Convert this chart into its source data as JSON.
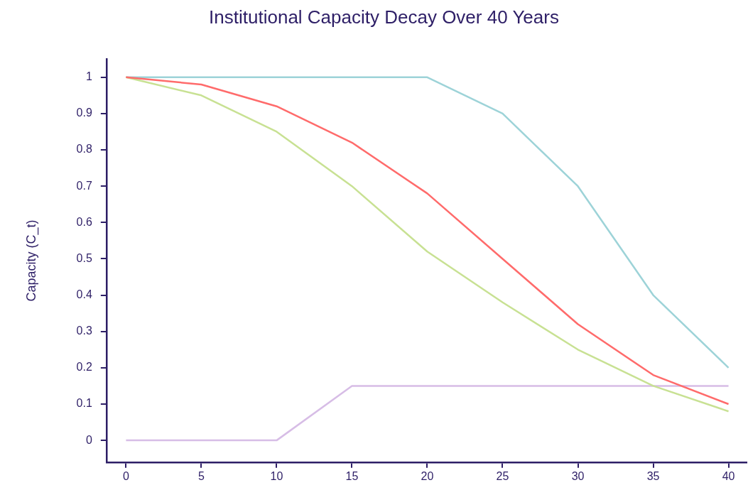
{
  "chart_data": {
    "type": "line",
    "title": "Institutional Capacity Decay Over 40 Years",
    "ylabel": "Capacity (C_t)",
    "x": [
      0,
      5,
      10,
      15,
      20,
      25,
      30,
      35,
      40
    ],
    "series": [
      {
        "color": "#ff6b6b",
        "values": [
          1,
          0.98,
          0.92,
          0.82,
          0.68,
          0.5,
          0.32,
          0.18,
          0.1
        ]
      },
      {
        "color": "#c8e193",
        "values": [
          1,
          0.95,
          0.85,
          0.7,
          0.52,
          0.38,
          0.25,
          0.15,
          0.08
        ]
      },
      {
        "color": "#9dd3d8",
        "values": [
          1,
          1,
          1,
          1,
          1,
          0.9,
          0.7,
          0.4,
          0.2
        ]
      },
      {
        "color": "#d7bde6",
        "values": [
          0,
          0,
          0,
          0.15,
          0.15,
          0.15,
          0.15,
          0.15,
          0.15
        ]
      }
    ],
    "xlim": [
      -1.3,
      41.2
    ],
    "xticks": [
      0,
      5,
      10,
      15,
      20,
      25,
      30,
      35,
      40
    ],
    "ylim": [
      -0.06,
      1.05
    ],
    "yticks": [
      0,
      0.1,
      0.2,
      0.3,
      0.4,
      0.5,
      0.6,
      0.7,
      0.8,
      0.9,
      1
    ],
    "grid": false,
    "legend": false,
    "marker": "none",
    "line_style": "solid"
  }
}
